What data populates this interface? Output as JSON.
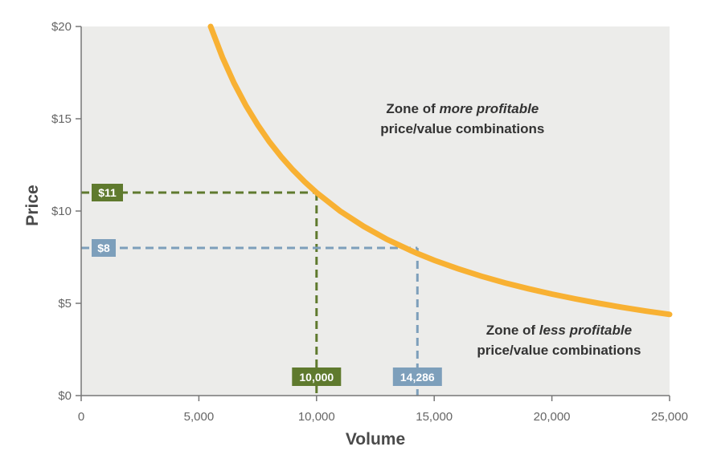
{
  "colors": {
    "plot_background": "#ececea",
    "curve": "#f8b133",
    "green_marker": "#5f7a2e",
    "blue_marker": "#7d9fbb",
    "axis": "#777777",
    "text": "#333333"
  },
  "chart_data": {
    "type": "line",
    "xlabel": "Volume",
    "ylabel": "Price",
    "xlim": [
      0,
      25000
    ],
    "ylim": [
      0,
      20
    ],
    "x_ticks": [
      0,
      5000,
      10000,
      15000,
      20000,
      25000
    ],
    "x_tick_labels": [
      "0",
      "5,000",
      "10,000",
      "15,000",
      "20,000",
      "25,000"
    ],
    "y_ticks": [
      0,
      5,
      10,
      15,
      20
    ],
    "y_tick_labels": [
      "$0",
      "$5",
      "$10",
      "$15",
      "$20"
    ],
    "grid": false,
    "series": [
      {
        "relation": "price × volume = 110,000",
        "x": [
          5500,
          6000,
          6500,
          7000,
          7500,
          8000,
          8500,
          9000,
          9500,
          10000,
          11000,
          12000,
          13000,
          14000,
          14286,
          15000,
          16000,
          17000,
          18000,
          19000,
          20000,
          21000,
          22000,
          23000,
          24000,
          25000
        ],
        "y": [
          20,
          18.33,
          16.92,
          15.71,
          14.67,
          13.75,
          12.94,
          12.22,
          11.58,
          11,
          10,
          9.17,
          8.46,
          7.86,
          7.7,
          7.33,
          6.88,
          6.47,
          6.11,
          5.79,
          5.5,
          5.24,
          5,
          4.78,
          4.58,
          4.4
        ]
      }
    ],
    "reference_points": [
      {
        "price": 11,
        "volume": 10000,
        "price_label": "$11",
        "volume_label": "10,000",
        "color": "#5f7a2e"
      },
      {
        "price": 8,
        "volume": 14286,
        "price_label": "$8",
        "volume_label": "14,286",
        "color": "#7d9fbb"
      }
    ],
    "annotations": [
      {
        "lines": [
          {
            "parts": [
              {
                "text": "Zone of "
              },
              {
                "text": "more profitable",
                "italic": true
              }
            ]
          },
          {
            "parts": [
              {
                "text": "price/value combinations"
              }
            ]
          }
        ],
        "x": 16200,
        "y": 15.3
      },
      {
        "lines": [
          {
            "parts": [
              {
                "text": "Zone of "
              },
              {
                "text": "less profitable",
                "italic": true
              }
            ]
          },
          {
            "parts": [
              {
                "text": "price/value combinations"
              }
            ]
          }
        ],
        "x": 20300,
        "y": 3.3
      }
    ]
  }
}
